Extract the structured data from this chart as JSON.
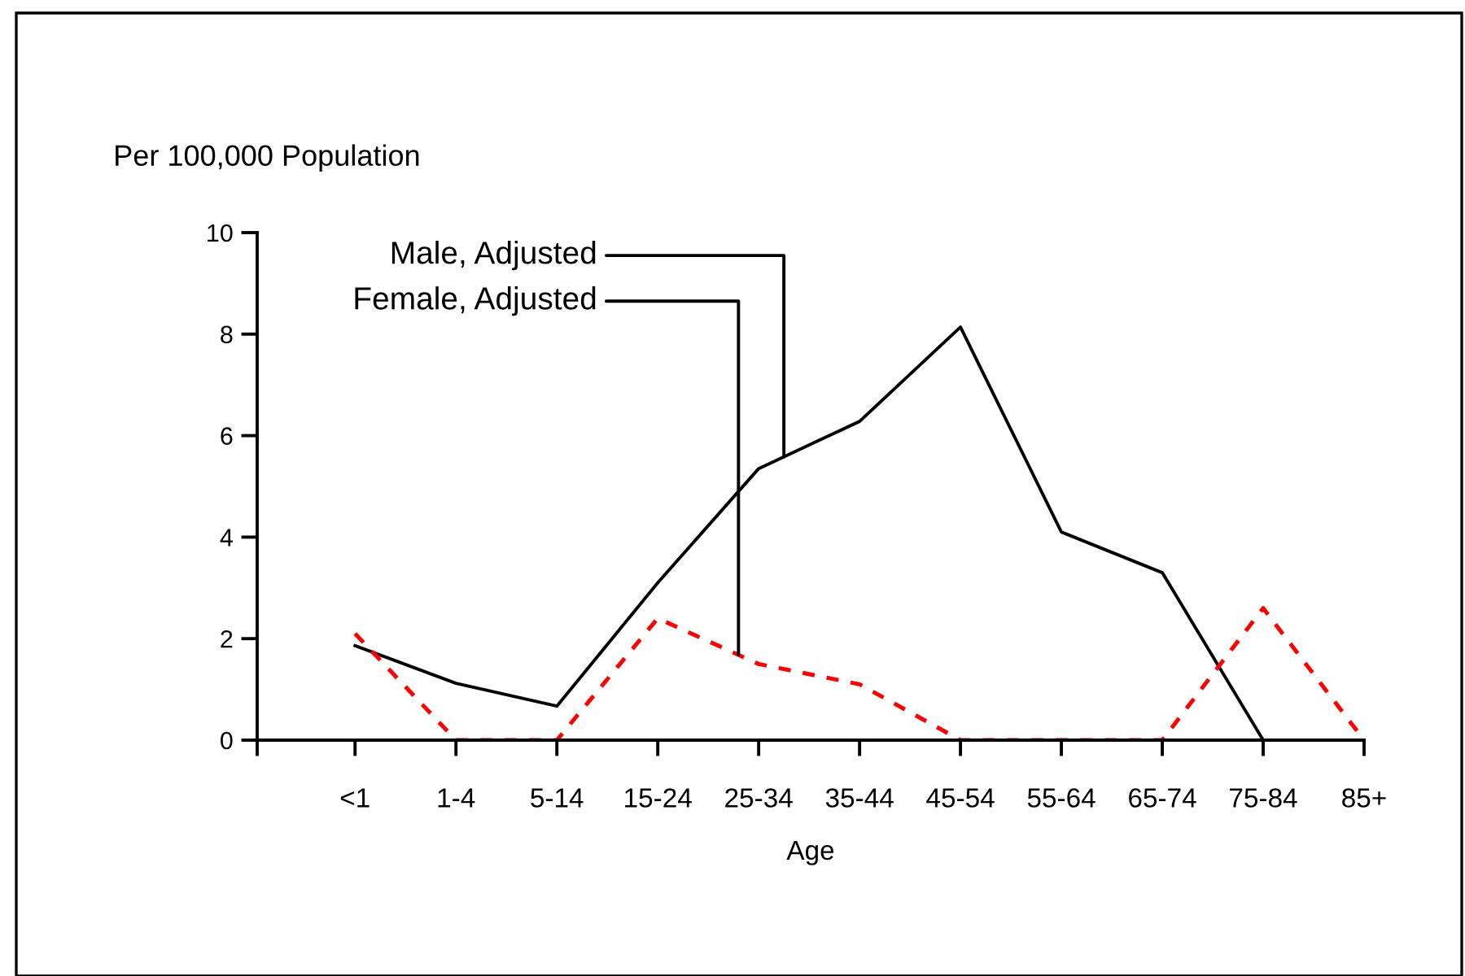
{
  "chart_data": {
    "type": "line",
    "ylabel": "Per 100,000 Population",
    "xlabel": "Age",
    "categories": [
      "<1",
      "1-4",
      "5-14",
      "15-24",
      "25-34",
      "35-44",
      "45-54",
      "55-64",
      "65-74",
      "75-84",
      "85+"
    ],
    "series": [
      {
        "name": "Male, Adjusted",
        "color": "#000000",
        "line_style": "solid",
        "values": [
          1.86,
          1.12,
          0.67,
          3.1,
          5.35,
          6.28,
          8.14,
          4.1,
          3.3,
          0,
          null
        ]
      },
      {
        "name": "Female, Adjusted",
        "color": "#ff0000",
        "line_style": "dashed",
        "values": [
          2.1,
          0,
          0,
          2.4,
          1.5,
          1.1,
          0,
          0,
          0,
          2.6,
          0
        ]
      }
    ],
    "ylim": [
      0,
      10
    ],
    "yticks": [
      0,
      2,
      4,
      6,
      8,
      10
    ],
    "grid": false,
    "legend": false,
    "marker": "none"
  }
}
